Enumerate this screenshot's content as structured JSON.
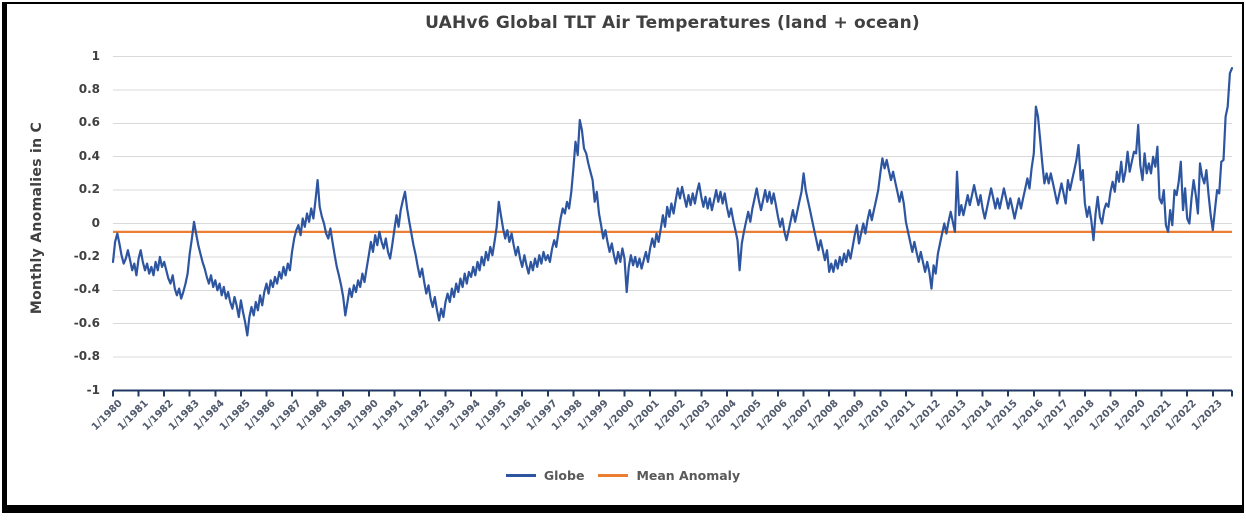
{
  "chart_data": {
    "type": "line",
    "title": "UAHv6 Global TLT Air Temperatures (land + ocean)",
    "xlabel": "",
    "ylabel": "Monthly Anomalies in C",
    "ylim": [
      -1,
      1
    ],
    "yticks": [
      "1",
      "0.8",
      "0.6",
      "0.4",
      "0.2",
      "0",
      "-0.2",
      "-0.4",
      "-0.6",
      "-0.8",
      "-1"
    ],
    "grid": "horizontal",
    "legend_position": "bottom",
    "x_axis_format": "month/year",
    "points_per_year": 12,
    "x_range_start": "1/1980",
    "x_range_end": "10/2023",
    "x_tick_labels": [
      "1/1980",
      "1/1981",
      "1/1982",
      "1/1983",
      "1/1984",
      "1/1985",
      "1/1986",
      "1/1987",
      "1/1988",
      "1/1989",
      "1/1990",
      "1/1991",
      "1/1992",
      "1/1993",
      "1/1994",
      "1/1995",
      "1/1996",
      "1/1997",
      "1/1998",
      "1/1999",
      "1/2000",
      "1/2001",
      "1/2002",
      "1/2003",
      "1/2004",
      "1/2005",
      "1/2006",
      "1/2007",
      "1/2008",
      "1/2009",
      "1/2010",
      "1/2011",
      "1/2012",
      "1/2013",
      "1/2014",
      "1/2015",
      "1/2016",
      "1/2017",
      "1/2018",
      "1/2019",
      "1/2020",
      "1/2021",
      "1/2022",
      "1/2023"
    ],
    "series": [
      {
        "name": "Globe",
        "color": "#2D55A0",
        "frequency": "monthly",
        "start": "1/1980",
        "values": [
          -0.23,
          -0.11,
          -0.06,
          -0.12,
          -0.19,
          -0.24,
          -0.21,
          -0.16,
          -0.22,
          -0.28,
          -0.24,
          -0.31,
          -0.21,
          -0.16,
          -0.23,
          -0.28,
          -0.24,
          -0.3,
          -0.26,
          -0.31,
          -0.23,
          -0.28,
          -0.2,
          -0.26,
          -0.23,
          -0.28,
          -0.33,
          -0.36,
          -0.31,
          -0.39,
          -0.43,
          -0.39,
          -0.45,
          -0.41,
          -0.36,
          -0.3,
          -0.18,
          -0.09,
          0.01,
          -0.06,
          -0.13,
          -0.18,
          -0.23,
          -0.27,
          -0.32,
          -0.36,
          -0.31,
          -0.38,
          -0.34,
          -0.4,
          -0.36,
          -0.43,
          -0.38,
          -0.45,
          -0.41,
          -0.47,
          -0.51,
          -0.44,
          -0.49,
          -0.56,
          -0.46,
          -0.53,
          -0.59,
          -0.67,
          -0.56,
          -0.5,
          -0.55,
          -0.47,
          -0.52,
          -0.43,
          -0.49,
          -0.41,
          -0.36,
          -0.42,
          -0.34,
          -0.38,
          -0.32,
          -0.36,
          -0.29,
          -0.33,
          -0.26,
          -0.31,
          -0.24,
          -0.28,
          -0.17,
          -0.09,
          -0.04,
          -0.01,
          -0.07,
          0.03,
          -0.02,
          0.06,
          0.01,
          0.09,
          0.03,
          0.14,
          0.26,
          0.1,
          0.04,
          0.0,
          -0.06,
          -0.09,
          -0.03,
          -0.11,
          -0.19,
          -0.26,
          -0.31,
          -0.37,
          -0.44,
          -0.55,
          -0.47,
          -0.39,
          -0.44,
          -0.37,
          -0.41,
          -0.34,
          -0.38,
          -0.3,
          -0.35,
          -0.27,
          -0.19,
          -0.11,
          -0.17,
          -0.07,
          -0.13,
          -0.05,
          -0.11,
          -0.15,
          -0.09,
          -0.17,
          -0.21,
          -0.13,
          -0.04,
          0.05,
          -0.02,
          0.08,
          0.14,
          0.19,
          0.09,
          0.01,
          -0.06,
          -0.13,
          -0.19,
          -0.26,
          -0.32,
          -0.27,
          -0.35,
          -0.42,
          -0.37,
          -0.45,
          -0.5,
          -0.44,
          -0.52,
          -0.58,
          -0.51,
          -0.56,
          -0.47,
          -0.42,
          -0.47,
          -0.39,
          -0.44,
          -0.36,
          -0.41,
          -0.33,
          -0.38,
          -0.3,
          -0.36,
          -0.29,
          -0.32,
          -0.26,
          -0.31,
          -0.23,
          -0.28,
          -0.2,
          -0.25,
          -0.17,
          -0.22,
          -0.14,
          -0.19,
          -0.11,
          -0.02,
          0.13,
          0.05,
          -0.03,
          -0.09,
          -0.04,
          -0.11,
          -0.06,
          -0.13,
          -0.19,
          -0.14,
          -0.21,
          -0.26,
          -0.19,
          -0.25,
          -0.3,
          -0.23,
          -0.28,
          -0.21,
          -0.26,
          -0.19,
          -0.24,
          -0.17,
          -0.22,
          -0.19,
          -0.23,
          -0.15,
          -0.1,
          -0.14,
          -0.05,
          0.03,
          0.09,
          0.06,
          0.13,
          0.09,
          0.19,
          0.33,
          0.49,
          0.41,
          0.62,
          0.56,
          0.45,
          0.42,
          0.36,
          0.31,
          0.26,
          0.13,
          0.19,
          0.06,
          -0.01,
          -0.09,
          -0.04,
          -0.11,
          -0.17,
          -0.12,
          -0.19,
          -0.24,
          -0.17,
          -0.23,
          -0.15,
          -0.21,
          -0.41,
          -0.26,
          -0.19,
          -0.25,
          -0.2,
          -0.26,
          -0.21,
          -0.27,
          -0.22,
          -0.17,
          -0.23,
          -0.15,
          -0.09,
          -0.14,
          -0.06,
          -0.11,
          -0.03,
          0.05,
          -0.02,
          0.1,
          0.04,
          0.12,
          0.06,
          0.14,
          0.21,
          0.15,
          0.22,
          0.16,
          0.1,
          0.17,
          0.11,
          0.18,
          0.12,
          0.19,
          0.24,
          0.16,
          0.1,
          0.16,
          0.09,
          0.15,
          0.08,
          0.14,
          0.2,
          0.13,
          0.19,
          0.12,
          0.18,
          0.1,
          0.04,
          0.09,
          0.02,
          -0.04,
          -0.1,
          -0.28,
          -0.12,
          -0.05,
          0.01,
          0.07,
          0.01,
          0.09,
          0.15,
          0.21,
          0.14,
          0.08,
          0.14,
          0.2,
          0.13,
          0.19,
          0.12,
          0.18,
          0.11,
          0.04,
          -0.02,
          0.03,
          -0.05,
          -0.1,
          -0.04,
          0.02,
          0.08,
          0.01,
          0.07,
          0.13,
          0.19,
          0.3,
          0.2,
          0.14,
          0.08,
          0.02,
          -0.04,
          -0.1,
          -0.16,
          -0.1,
          -0.16,
          -0.22,
          -0.16,
          -0.29,
          -0.24,
          -0.29,
          -0.22,
          -0.27,
          -0.2,
          -0.25,
          -0.18,
          -0.23,
          -0.16,
          -0.21,
          -0.14,
          -0.07,
          -0.01,
          -0.12,
          -0.06,
          0.0,
          -0.06,
          0.02,
          0.08,
          0.02,
          0.08,
          0.14,
          0.2,
          0.3,
          0.39,
          0.33,
          0.38,
          0.32,
          0.26,
          0.31,
          0.25,
          0.19,
          0.13,
          0.19,
          0.12,
          0.01,
          -0.05,
          -0.11,
          -0.17,
          -0.11,
          -0.17,
          -0.23,
          -0.17,
          -0.23,
          -0.29,
          -0.23,
          -0.29,
          -0.39,
          -0.25,
          -0.3,
          -0.18,
          -0.12,
          -0.06,
          0.0,
          -0.06,
          0.01,
          0.07,
          0.01,
          -0.05,
          0.31,
          0.05,
          0.11,
          0.05,
          0.11,
          0.17,
          0.11,
          0.17,
          0.23,
          0.17,
          0.11,
          0.17,
          0.09,
          0.03,
          0.09,
          0.15,
          0.21,
          0.15,
          0.09,
          0.15,
          0.09,
          0.15,
          0.21,
          0.15,
          0.09,
          0.15,
          0.09,
          0.03,
          0.09,
          0.15,
          0.09,
          0.15,
          0.21,
          0.27,
          0.21,
          0.33,
          0.42,
          0.7,
          0.64,
          0.5,
          0.36,
          0.24,
          0.3,
          0.24,
          0.3,
          0.24,
          0.18,
          0.12,
          0.18,
          0.24,
          0.18,
          0.12,
          0.26,
          0.2,
          0.26,
          0.32,
          0.38,
          0.47,
          0.26,
          0.32,
          0.12,
          0.04,
          0.1,
          0.02,
          -0.1,
          0.06,
          0.16,
          0.04,
          0.0,
          0.08,
          0.12,
          0.1,
          0.19,
          0.25,
          0.19,
          0.31,
          0.25,
          0.37,
          0.25,
          0.31,
          0.43,
          0.31,
          0.37,
          0.43,
          0.42,
          0.59,
          0.35,
          0.26,
          0.42,
          0.3,
          0.36,
          0.3,
          0.4,
          0.34,
          0.46,
          0.15,
          0.12,
          0.2,
          -0.01,
          -0.05,
          0.08,
          -0.01,
          0.2,
          0.17,
          0.25,
          0.37,
          0.08,
          0.21,
          0.03,
          0.0,
          0.15,
          0.26,
          0.17,
          0.06,
          0.36,
          0.28,
          0.24,
          0.32,
          0.17,
          0.05,
          -0.04,
          0.08,
          0.2,
          0.18,
          0.37,
          0.38,
          0.64,
          0.7,
          0.9,
          0.93
        ]
      },
      {
        "name": "Mean Anomaly",
        "color": "#ED7D31",
        "type": "constant",
        "value": -0.05
      }
    ]
  },
  "styles": {
    "grid_color": "#D9D9D9",
    "axis_color": "#1F3864",
    "title_color": "#404040",
    "y_tick_color": "#404040",
    "x_tick_color": "#50596B",
    "legend_text_color": "#595959",
    "frame_border_color": "#000000",
    "background": "#FFFFFF"
  }
}
